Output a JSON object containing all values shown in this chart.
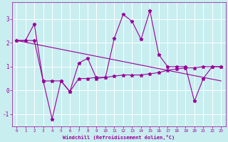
{
  "xlabel": "Windchill (Refroidissement éolien,°C)",
  "background_color": "#c8eef0",
  "grid_color": "#ffffff",
  "line_color": "#990099",
  "xlim": [
    -0.5,
    23.5
  ],
  "ylim": [
    -1.5,
    3.7
  ],
  "yticks": [
    -1,
    0,
    1,
    2,
    3
  ],
  "xticks": [
    0,
    1,
    2,
    3,
    4,
    5,
    6,
    7,
    8,
    9,
    10,
    11,
    12,
    13,
    14,
    15,
    16,
    17,
    18,
    19,
    20,
    21,
    22,
    23
  ],
  "series1_x": [
    0,
    1,
    2,
    3,
    4,
    5,
    6,
    7,
    8,
    9,
    10,
    11,
    12,
    13,
    14,
    15,
    16,
    17,
    18,
    19,
    20,
    21,
    22,
    23
  ],
  "series1_y": [
    2.1,
    2.1,
    2.8,
    0.4,
    -1.2,
    0.4,
    -0.05,
    1.15,
    1.35,
    0.5,
    0.55,
    2.2,
    3.2,
    2.9,
    2.15,
    3.35,
    1.5,
    1.0,
    1.0,
    1.0,
    -0.45,
    0.5,
    1.0,
    1.0
  ],
  "series2_x": [
    0,
    23
  ],
  "series2_y": [
    2.1,
    0.4
  ],
  "series3_x": [
    0,
    1,
    2,
    3,
    4,
    5,
    6,
    7,
    8,
    9,
    10,
    11,
    12,
    13,
    14,
    15,
    16,
    17,
    18,
    19,
    20,
    21,
    22,
    23
  ],
  "series3_y": [
    2.1,
    2.1,
    2.1,
    0.4,
    0.4,
    0.4,
    -0.05,
    0.5,
    0.5,
    0.55,
    0.55,
    0.6,
    0.65,
    0.65,
    0.65,
    0.7,
    0.75,
    0.85,
    0.9,
    0.95,
    0.95,
    1.0,
    1.0,
    1.0
  ]
}
